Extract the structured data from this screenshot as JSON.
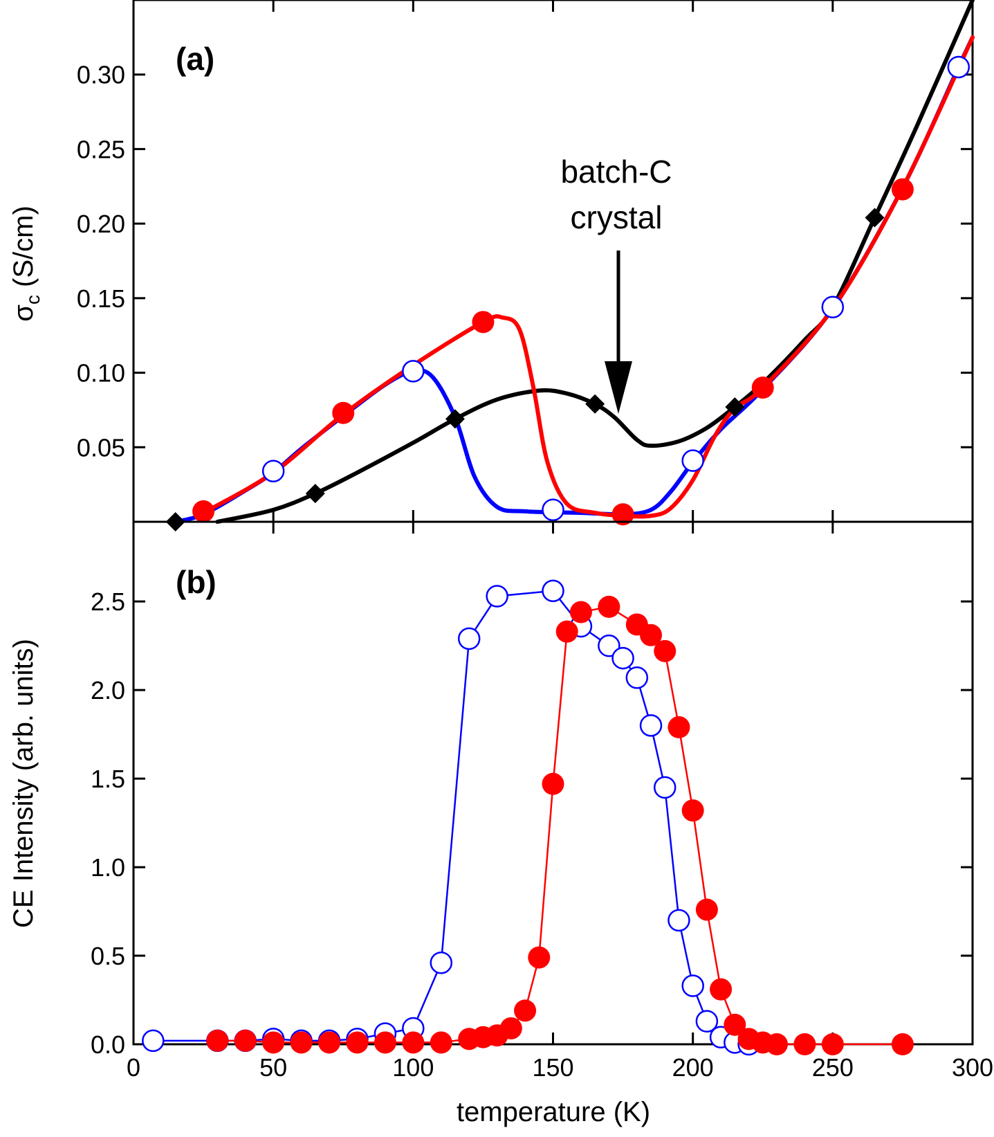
{
  "colors": {
    "blue": "#0000ff",
    "red": "#ff0000",
    "black": "#000000"
  },
  "chart_data": [
    {
      "panel": "a",
      "type": "line",
      "label": "(a)",
      "xlabel": "",
      "ylabel_main": "σ",
      "ylabel_sub": "c",
      "ylabel_rest": " (S/cm)",
      "xlim": [
        0,
        300
      ],
      "ylim": [
        0,
        0.35
      ],
      "yticks": [
        0.05,
        0.1,
        0.15,
        0.2,
        0.25,
        0.3
      ],
      "ytick_labels": [
        "0.05",
        "0.10",
        "0.15",
        "0.20",
        "0.25",
        "0.30"
      ],
      "xticks": [
        50,
        100,
        150,
        200,
        250
      ],
      "annotation": {
        "line1": "batch-C",
        "line2": "crystal",
        "arrow_target": [
          175,
          0.075
        ]
      },
      "series": [
        {
          "name": "black",
          "color": "#000000",
          "marker": "diamond",
          "curve": [
            [
              30,
              0.0
            ],
            [
              50,
              0.008
            ],
            [
              65,
              0.019
            ],
            [
              80,
              0.033
            ],
            [
              100,
              0.053
            ],
            [
              115,
              0.069
            ],
            [
              130,
              0.082
            ],
            [
              145,
              0.088
            ],
            [
              155,
              0.086
            ],
            [
              165,
              0.079
            ],
            [
              172,
              0.07
            ],
            [
              180,
              0.055
            ],
            [
              185,
              0.051
            ],
            [
              195,
              0.054
            ],
            [
              205,
              0.063
            ],
            [
              215,
              0.077
            ],
            [
              225,
              0.093
            ],
            [
              240,
              0.122
            ],
            [
              250,
              0.144
            ],
            [
              265,
              0.204
            ],
            [
              280,
              0.265
            ],
            [
              300,
              0.35
            ]
          ],
          "markers": [
            [
              15,
              0.0
            ],
            [
              65,
              0.019
            ],
            [
              115,
              0.069
            ],
            [
              165,
              0.079
            ],
            [
              215,
              0.077
            ],
            [
              265,
              0.204
            ]
          ]
        },
        {
          "name": "blue",
          "color": "#0000ff",
          "marker": "open-circle",
          "curve": [
            [
              15,
              0.0
            ],
            [
              25,
              0.005
            ],
            [
              40,
              0.021
            ],
            [
              50,
              0.033
            ],
            [
              60,
              0.049
            ],
            [
              75,
              0.071
            ],
            [
              90,
              0.092
            ],
            [
              100,
              0.101
            ],
            [
              107,
              0.097
            ],
            [
              115,
              0.07
            ],
            [
              122,
              0.03
            ],
            [
              130,
              0.01
            ],
            [
              140,
              0.007
            ],
            [
              160,
              0.006
            ],
            [
              175,
              0.005
            ],
            [
              185,
              0.008
            ],
            [
              192,
              0.02
            ],
            [
              200,
              0.04
            ],
            [
              210,
              0.062
            ],
            [
              225,
              0.089
            ],
            [
              250,
              0.143
            ],
            [
              275,
              0.224
            ],
            [
              295,
              0.305
            ],
            [
              300,
              0.325
            ]
          ],
          "markers": [
            [
              50,
              0.034
            ],
            [
              100,
              0.101
            ],
            [
              150,
              0.008
            ],
            [
              200,
              0.041
            ],
            [
              250,
              0.144
            ],
            [
              295,
              0.305
            ]
          ]
        },
        {
          "name": "red",
          "color": "#ff0000",
          "marker": "filled-circle",
          "curve": [
            [
              25,
              0.006
            ],
            [
              50,
              0.033
            ],
            [
              75,
              0.072
            ],
            [
              100,
              0.105
            ],
            [
              125,
              0.134
            ],
            [
              132,
              0.137
            ],
            [
              138,
              0.129
            ],
            [
              143,
              0.09
            ],
            [
              148,
              0.04
            ],
            [
              155,
              0.012
            ],
            [
              165,
              0.006
            ],
            [
              175,
              0.004
            ],
            [
              185,
              0.004
            ],
            [
              192,
              0.009
            ],
            [
              200,
              0.028
            ],
            [
              208,
              0.058
            ],
            [
              215,
              0.076
            ],
            [
              225,
              0.09
            ],
            [
              250,
              0.143
            ],
            [
              275,
              0.224
            ],
            [
              300,
              0.325
            ]
          ],
          "markers": [
            [
              25,
              0.007
            ],
            [
              75,
              0.073
            ],
            [
              125,
              0.134
            ],
            [
              175,
              0.005
            ],
            [
              225,
              0.09
            ],
            [
              275,
              0.223
            ]
          ]
        }
      ]
    },
    {
      "panel": "b",
      "type": "line",
      "label": "(b)",
      "xlabel": "temperature (K)",
      "ylabel": "CE Intensity (arb. units)",
      "xlim": [
        0,
        300
      ],
      "ylim": [
        0,
        2.95
      ],
      "xticks": [
        0,
        50,
        100,
        150,
        200,
        250,
        300
      ],
      "xtick_labels": [
        "0",
        "50",
        "100",
        "150",
        "200",
        "250",
        "300"
      ],
      "yticks": [
        0.0,
        0.5,
        1.0,
        1.5,
        2.0,
        2.5
      ],
      "ytick_labels": [
        "0.0",
        "0.5",
        "1.0",
        "1.5",
        "2.0",
        "2.5"
      ],
      "series": [
        {
          "name": "blue",
          "color": "#0000ff",
          "marker": "open-circle",
          "points": [
            [
              7,
              0.02
            ],
            [
              30,
              0.02
            ],
            [
              40,
              0.02
            ],
            [
              50,
              0.03
            ],
            [
              60,
              0.02
            ],
            [
              70,
              0.02
            ],
            [
              80,
              0.03
            ],
            [
              90,
              0.06
            ],
            [
              100,
              0.09
            ],
            [
              110,
              0.46
            ],
            [
              120,
              2.29
            ],
            [
              130,
              2.53
            ],
            [
              150,
              2.56
            ],
            [
              160,
              2.36
            ],
            [
              170,
              2.25
            ],
            [
              175,
              2.18
            ],
            [
              180,
              2.07
            ],
            [
              185,
              1.8
            ],
            [
              190,
              1.45
            ],
            [
              195,
              0.7
            ],
            [
              200,
              0.33
            ],
            [
              205,
              0.13
            ],
            [
              210,
              0.04
            ],
            [
              215,
              0.01
            ],
            [
              220,
              0.0
            ]
          ]
        },
        {
          "name": "red",
          "color": "#ff0000",
          "marker": "filled-circle",
          "points": [
            [
              30,
              0.02
            ],
            [
              40,
              0.02
            ],
            [
              50,
              0.01
            ],
            [
              60,
              0.01
            ],
            [
              70,
              0.01
            ],
            [
              80,
              0.01
            ],
            [
              90,
              0.01
            ],
            [
              100,
              0.01
            ],
            [
              110,
              0.01
            ],
            [
              120,
              0.03
            ],
            [
              125,
              0.04
            ],
            [
              130,
              0.05
            ],
            [
              135,
              0.09
            ],
            [
              140,
              0.19
            ],
            [
              145,
              0.49
            ],
            [
              150,
              1.47
            ],
            [
              155,
              2.33
            ],
            [
              160,
              2.44
            ],
            [
              170,
              2.47
            ],
            [
              180,
              2.37
            ],
            [
              185,
              2.31
            ],
            [
              190,
              2.22
            ],
            [
              195,
              1.79
            ],
            [
              200,
              1.32
            ],
            [
              205,
              0.76
            ],
            [
              210,
              0.31
            ],
            [
              215,
              0.11
            ],
            [
              220,
              0.03
            ],
            [
              225,
              0.01
            ],
            [
              230,
              0.0
            ],
            [
              240,
              0.0
            ],
            [
              250,
              0.0
            ],
            [
              275,
              0.0
            ]
          ]
        }
      ]
    }
  ]
}
